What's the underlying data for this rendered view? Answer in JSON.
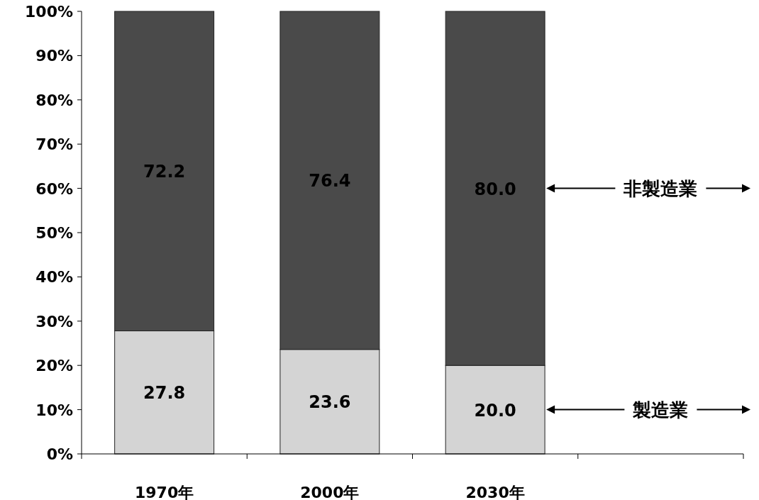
{
  "chart_data": {
    "type": "bar",
    "stacked": true,
    "categories": [
      "1970年",
      "2000年",
      "2030年",
      null
    ],
    "series": [
      {
        "name": "製造業",
        "color": "#d4d4d4",
        "values": [
          27.8,
          23.6,
          20.0,
          null
        ],
        "value_labels": [
          "27.8",
          "23.6",
          "20.0",
          null
        ]
      },
      {
        "name": "非製造業",
        "color": "#4a4a4a",
        "values": [
          72.2,
          76.4,
          80.0,
          null
        ],
        "value_labels": [
          "72.2",
          "76.4",
          "80.0",
          null
        ]
      }
    ],
    "ylim": [
      0,
      100
    ],
    "yticks": [
      {
        "value": 0,
        "label": "0%"
      },
      {
        "value": 10,
        "label": "10%"
      },
      {
        "value": 20,
        "label": "20%"
      },
      {
        "value": 30,
        "label": "30%"
      },
      {
        "value": 40,
        "label": "40%"
      },
      {
        "value": 50,
        "label": "50%"
      },
      {
        "value": 60,
        "label": "60%"
      },
      {
        "value": 70,
        "label": "70%"
      },
      {
        "value": 80,
        "label": "80%"
      },
      {
        "value": 90,
        "label": "90%"
      },
      {
        "value": 100,
        "label": "100%"
      }
    ],
    "grid": false
  }
}
